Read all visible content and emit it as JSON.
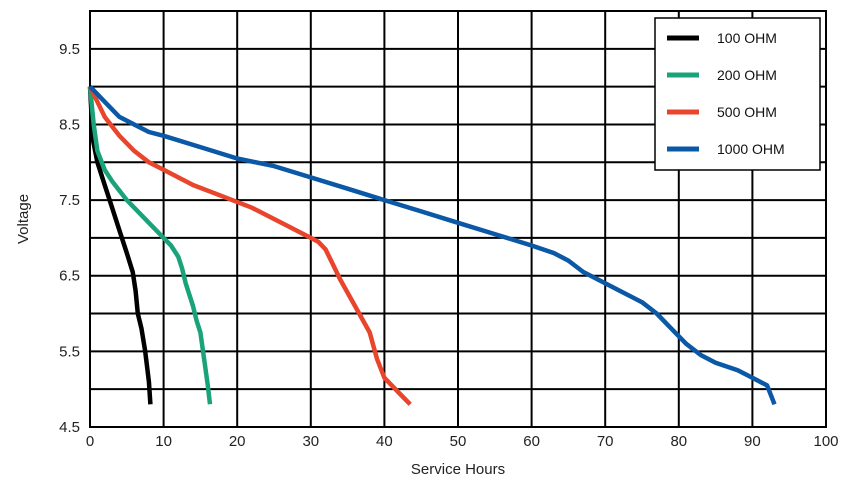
{
  "chart_data": {
    "type": "line",
    "xlabel": "Service Hours",
    "ylabel": "Voltage",
    "xlim": [
      0,
      100
    ],
    "ylim": [
      4.5,
      10.0
    ],
    "x_ticks": [
      0,
      10,
      20,
      30,
      40,
      50,
      60,
      70,
      80,
      90,
      100
    ],
    "y_ticks": [
      4.5,
      5.5,
      6.5,
      7.5,
      8.5,
      9.5
    ],
    "x_tick_labels": [
      "0",
      "10",
      "20",
      "30",
      "40",
      "50",
      "60",
      "70",
      "80",
      "90",
      "100"
    ],
    "y_tick_labels": [
      "4.5",
      "5.5",
      "6.5",
      "7.5",
      "8.5",
      "9.5"
    ],
    "grid": true,
    "grid_x": [
      0,
      10,
      20,
      30,
      40,
      50,
      60,
      70,
      80,
      90,
      100
    ],
    "grid_y": [
      5.0,
      5.5,
      6.0,
      6.5,
      7.0,
      7.5,
      8.0,
      8.5,
      9.0,
      9.5
    ],
    "legend_position": "top-right",
    "series": [
      {
        "name": "100 OHM",
        "color": "#000000",
        "x": [
          0,
          0.4,
          1,
          2,
          3,
          4,
          5,
          5.8,
          6.2,
          6.5,
          7,
          7.5,
          8,
          8.2
        ],
        "y": [
          9.0,
          8.3,
          8.0,
          7.7,
          7.4,
          7.1,
          6.8,
          6.55,
          6.3,
          6.0,
          5.8,
          5.5,
          5.1,
          4.8
        ]
      },
      {
        "name": "200 OHM",
        "color": "#1aa37a",
        "x": [
          0,
          0.5,
          1,
          2,
          3,
          5,
          7,
          9,
          10,
          11,
          12,
          12.5,
          13,
          14,
          14.5,
          15,
          15.5,
          16,
          16.3
        ],
        "y": [
          9.0,
          8.5,
          8.15,
          7.9,
          7.75,
          7.5,
          7.3,
          7.1,
          7.0,
          6.9,
          6.75,
          6.6,
          6.4,
          6.1,
          5.9,
          5.75,
          5.4,
          5.05,
          4.8
        ]
      },
      {
        "name": "500 OHM",
        "color": "#e8452c",
        "x": [
          0,
          1,
          2,
          4,
          6,
          8,
          10,
          14,
          18,
          22,
          26,
          30,
          31,
          32,
          33,
          34,
          36,
          38,
          39,
          40,
          42,
          43.5
        ],
        "y": [
          9.0,
          8.8,
          8.6,
          8.35,
          8.15,
          8.0,
          7.9,
          7.7,
          7.55,
          7.4,
          7.2,
          7.0,
          6.95,
          6.85,
          6.65,
          6.45,
          6.1,
          5.75,
          5.4,
          5.15,
          4.95,
          4.8
        ]
      },
      {
        "name": "1000 OHM",
        "color": "#0a58a6",
        "x": [
          0,
          1,
          2,
          4,
          6,
          8,
          10,
          15,
          20,
          25,
          30,
          35,
          40,
          45,
          50,
          55,
          60,
          63,
          65,
          67,
          70,
          72,
          75,
          77,
          79,
          81,
          83,
          85,
          88,
          90,
          92,
          93
        ],
        "y": [
          9.0,
          8.9,
          8.8,
          8.6,
          8.5,
          8.4,
          8.35,
          8.2,
          8.05,
          7.95,
          7.8,
          7.65,
          7.5,
          7.35,
          7.2,
          7.05,
          6.9,
          6.8,
          6.7,
          6.55,
          6.4,
          6.3,
          6.15,
          6.0,
          5.8,
          5.6,
          5.45,
          5.35,
          5.25,
          5.15,
          5.05,
          4.8
        ]
      }
    ]
  }
}
